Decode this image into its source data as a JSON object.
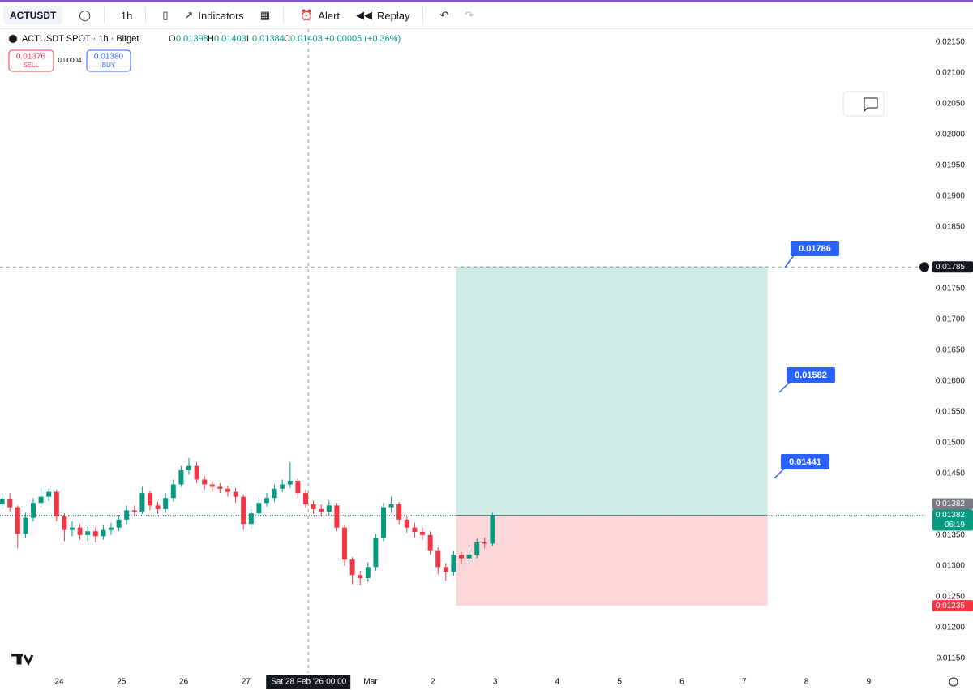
{
  "toolbar": {
    "symbol": "ACTUSDT",
    "interval": "1h",
    "indicators": "Indicators",
    "alert": "Alert",
    "replay": "Replay"
  },
  "legend": {
    "title": "ACTUSDT SPOT · 1h · Bitget",
    "o_label": "O",
    "o": "0.01398",
    "h_label": "H",
    "h": "0.01403",
    "l_label": "L",
    "l": "0.01384",
    "c_label": "C",
    "c": "0.01403",
    "change": "+0.00005 (+0.36%)"
  },
  "trade": {
    "sell_price": "0.01376",
    "sell": "SELL",
    "spread": "0.00004",
    "buy_price": "0.01380",
    "buy": "BUY"
  },
  "chart_data": {
    "type": "candlestick",
    "up_color": "#089981",
    "down_color": "#f23645",
    "x": [
      2,
      5,
      8,
      11,
      14,
      17,
      20,
      23,
      26,
      29,
      32,
      35,
      38,
      41,
      44,
      47,
      50,
      53,
      56,
      59,
      62,
      65,
      68,
      71,
      74,
      77,
      80,
      83,
      86,
      89,
      92,
      95,
      98,
      101,
      104,
      107,
      110,
      113,
      116,
      119,
      122,
      125,
      128,
      131,
      134,
      137,
      140,
      143,
      146,
      149,
      152,
      155,
      158,
      161,
      164,
      167,
      170,
      173,
      176,
      179,
      182,
      185,
      188,
      191
    ],
    "open": [
      0.014,
      0.01408,
      0.01395,
      0.01352,
      0.01378,
      0.01402,
      0.01412,
      0.0142,
      0.0138,
      0.01358,
      0.01362,
      0.0135,
      0.01356,
      0.01348,
      0.01358,
      0.01362,
      0.01375,
      0.0139,
      0.01388,
      0.01418,
      0.01398,
      0.01392,
      0.0141,
      0.01432,
      0.01455,
      0.01462,
      0.0144,
      0.01432,
      0.01428,
      0.01425,
      0.0142,
      0.01412,
      0.01368,
      0.01385,
      0.01402,
      0.0141,
      0.01425,
      0.01432,
      0.01438,
      0.01418,
      0.014,
      0.01392,
      0.01388,
      0.01398,
      0.01362,
      0.0131,
      0.01285,
      0.0128,
      0.01298,
      0.01345,
      0.01395,
      0.014,
      0.01375,
      0.01362,
      0.01355,
      0.0135,
      0.01325,
      0.01298,
      0.0129,
      0.01318,
      0.01312,
      0.01318,
      0.01338,
      0.01336
    ],
    "high": [
      0.01416,
      0.01418,
      0.01398,
      0.01386,
      0.0141,
      0.01428,
      0.01426,
      0.01424,
      0.01385,
      0.01372,
      0.01368,
      0.01364,
      0.01362,
      0.01366,
      0.0137,
      0.01382,
      0.01398,
      0.01398,
      0.01428,
      0.01422,
      0.01404,
      0.01418,
      0.0144,
      0.01462,
      0.01475,
      0.01468,
      0.01446,
      0.01438,
      0.01434,
      0.0143,
      0.01426,
      0.01416,
      0.01392,
      0.0141,
      0.01418,
      0.01432,
      0.0144,
      0.01468,
      0.01442,
      0.01424,
      0.01406,
      0.014,
      0.01406,
      0.01402,
      0.01366,
      0.01314,
      0.01292,
      0.01306,
      0.01352,
      0.01402,
      0.01412,
      0.01404,
      0.0138,
      0.0137,
      0.01362,
      0.01356,
      0.0133,
      0.01304,
      0.01324,
      0.01322,
      0.01326,
      0.01344,
      0.01346,
      0.01386
    ],
    "low": [
      0.01392,
      0.01388,
      0.01328,
      0.01345,
      0.01372,
      0.01396,
      0.01405,
      0.01372,
      0.0134,
      0.01348,
      0.01342,
      0.0134,
      0.01338,
      0.01342,
      0.0135,
      0.01356,
      0.01368,
      0.0138,
      0.01384,
      0.0139,
      0.01384,
      0.01386,
      0.01404,
      0.01428,
      0.01448,
      0.01434,
      0.01424,
      0.0142,
      0.01418,
      0.01412,
      0.01402,
      0.01358,
      0.0136,
      0.0138,
      0.01396,
      0.01404,
      0.0142,
      0.01426,
      0.0141,
      0.01394,
      0.01384,
      0.0138,
      0.01382,
      0.01356,
      0.013,
      0.0127,
      0.01268,
      0.01274,
      0.01292,
      0.0134,
      0.01386,
      0.01368,
      0.01354,
      0.01346,
      0.01342,
      0.01318,
      0.01286,
      0.01276,
      0.01284,
      0.01302,
      0.01304,
      0.01312,
      0.01328,
      0.01332
    ],
    "close": [
      0.01408,
      0.01395,
      0.01352,
      0.01378,
      0.01402,
      0.01412,
      0.0142,
      0.0138,
      0.01358,
      0.01362,
      0.0135,
      0.01356,
      0.01348,
      0.01358,
      0.01362,
      0.01375,
      0.0139,
      0.01388,
      0.01418,
      0.01398,
      0.01392,
      0.0141,
      0.01432,
      0.01455,
      0.01462,
      0.0144,
      0.01432,
      0.01428,
      0.01425,
      0.0142,
      0.01412,
      0.01368,
      0.01385,
      0.01402,
      0.0141,
      0.01425,
      0.01432,
      0.01438,
      0.01418,
      0.014,
      0.01392,
      0.01388,
      0.01398,
      0.01362,
      0.0131,
      0.01285,
      0.0128,
      0.01298,
      0.01345,
      0.01395,
      0.014,
      0.01375,
      0.01362,
      0.01355,
      0.0135,
      0.01325,
      0.01298,
      0.0129,
      0.01318,
      0.01312,
      0.01318,
      0.01338,
      0.01336,
      0.01382
    ],
    "xlim": [
      1.1875,
      355.875
    ],
    "xticks": [
      {
        "value": 24,
        "label": "24"
      },
      {
        "value": 48,
        "label": "25"
      },
      {
        "value": 72,
        "label": "26"
      },
      {
        "value": 96,
        "label": "27"
      },
      {
        "value": 144,
        "label": "Mar"
      },
      {
        "value": 168,
        "label": "2"
      },
      {
        "value": 192,
        "label": "3"
      },
      {
        "value": 216,
        "label": "4"
      },
      {
        "value": 240,
        "label": "5"
      },
      {
        "value": 264,
        "label": "6"
      },
      {
        "value": 288,
        "label": "7"
      },
      {
        "value": 312,
        "label": "8"
      },
      {
        "value": 336,
        "label": "9"
      }
    ],
    "ylim": [
      0.01126,
      0.02171
    ],
    "yticks": [
      {
        "value": 0.0215,
        "label": "0.02150"
      },
      {
        "value": 0.021,
        "label": "0.02100"
      },
      {
        "value": 0.0205,
        "label": "0.02050"
      },
      {
        "value": 0.02,
        "label": "0.02000"
      },
      {
        "value": 0.0195,
        "label": "0.01950"
      },
      {
        "value": 0.019,
        "label": "0.01900"
      },
      {
        "value": 0.0185,
        "label": "0.01850"
      },
      {
        "value": 0.0175,
        "label": "0.01750"
      },
      {
        "value": 0.017,
        "label": "0.01700"
      },
      {
        "value": 0.0165,
        "label": "0.01650"
      },
      {
        "value": 0.016,
        "label": "0.01600"
      },
      {
        "value": 0.0155,
        "label": "0.01550"
      },
      {
        "value": 0.015,
        "label": "0.01500"
      },
      {
        "value": 0.0145,
        "label": "0.01450"
      },
      {
        "value": 0.0135,
        "label": "0.01350"
      },
      {
        "value": 0.013,
        "label": "0.01300"
      },
      {
        "value": 0.0125,
        "label": "0.01250"
      },
      {
        "value": 0.012,
        "label": "0.01200"
      },
      {
        "value": 0.0115,
        "label": "0.01150"
      }
    ],
    "position_tool": {
      "start": 177,
      "end": 297,
      "entry": 0.01382,
      "target": 0.01786,
      "stop": 0.01235
    },
    "crosshair": {
      "x": 120,
      "y": 0.01785,
      "date": "Sat 28 Feb '26",
      "time": "00:00"
    },
    "price_labels": [
      {
        "value": 0.01785,
        "label": "0.01785",
        "color": "#131722"
      },
      {
        "value": 0.01382,
        "label": "0.01382",
        "color": "#787b86"
      },
      {
        "value": 0.01382,
        "label": "0.01382",
        "color": "#089981"
      },
      {
        "value": 0.01235,
        "label": "0.01235",
        "color": "#f23645"
      }
    ],
    "countdown": "06:19",
    "annotations": [
      "0.01786",
      "0.01582",
      "0.01441"
    ],
    "annotation_color": "#2962ff"
  }
}
